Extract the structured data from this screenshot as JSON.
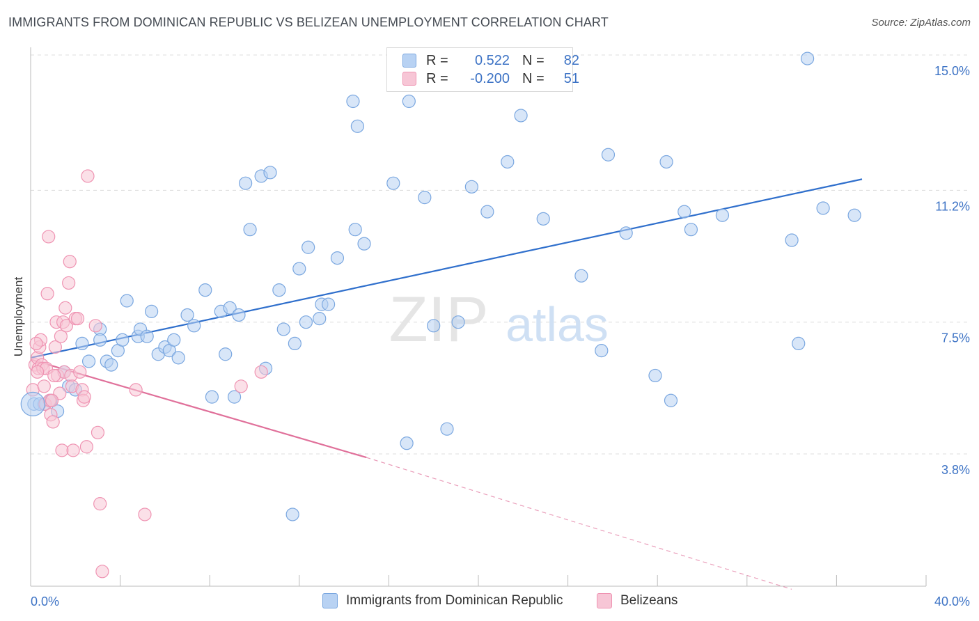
{
  "header": {
    "title": "IMMIGRANTS FROM DOMINICAN REPUBLIC VS BELIZEAN UNEMPLOYMENT CORRELATION CHART",
    "source": "Source: ZipAtlas.com"
  },
  "watermark": {
    "zip": "ZIP",
    "atlas": "atlas"
  },
  "legend": {
    "rows": [
      {
        "r_label": "R =",
        "r_value": "0.522",
        "n_label": "N =",
        "n_value": "82"
      },
      {
        "r_label": "R =",
        "r_value": "-0.200",
        "n_label": "N =",
        "n_value": "51"
      }
    ]
  },
  "colors": {
    "blue_fill": "#b8d2f3",
    "blue_stroke": "#7aa7e0",
    "blue_line": "#2f6fcc",
    "pink_fill": "#f7c6d6",
    "pink_stroke": "#ef93b2",
    "pink_line": "#e0709a",
    "axis_text": "#3d73c5",
    "grid": "#dcdcdc"
  },
  "chart_data": {
    "type": "scatter",
    "title": "IMMIGRANTS FROM DOMINICAN REPUBLIC VS BELIZEAN UNEMPLOYMENT CORRELATION CHART",
    "xlabel": "",
    "ylabel": "Unemployment",
    "xlim": [
      0,
      40
    ],
    "ylim": [
      0,
      15.7
    ],
    "x_tick_labels": [
      "0.0%",
      "40.0%"
    ],
    "y_ticks": [
      3.8,
      7.5,
      11.2,
      15.0
    ],
    "y_tick_labels": [
      "3.8%",
      "7.5%",
      "11.2%",
      "15.0%"
    ],
    "grid": "horizontal dashed",
    "legend_placement": "top-center",
    "series": [
      {
        "name": "Immigrants from Dominican Republic",
        "color": "#b8d2f3",
        "trend": {
          "x": [
            0,
            40
          ],
          "y": [
            6.5,
            11.9
          ]
        },
        "points": [
          [
            0.15,
            5.2
          ],
          [
            0.6,
            5.2
          ],
          [
            0.9,
            5.3
          ],
          [
            1.2,
            5.0
          ],
          [
            1.5,
            6.1
          ],
          [
            1.7,
            5.7
          ],
          [
            2.0,
            5.6
          ],
          [
            2.3,
            6.9
          ],
          [
            2.6,
            6.4
          ],
          [
            3.1,
            7.3
          ],
          [
            3.1,
            7.0
          ],
          [
            3.4,
            6.4
          ],
          [
            3.6,
            6.3
          ],
          [
            3.9,
            6.7
          ],
          [
            4.1,
            7.0
          ],
          [
            4.3,
            8.1
          ],
          [
            4.8,
            7.1
          ],
          [
            4.9,
            7.3
          ],
          [
            5.2,
            7.1
          ],
          [
            5.4,
            7.8
          ],
          [
            5.7,
            6.6
          ],
          [
            6.0,
            6.8
          ],
          [
            6.2,
            6.7
          ],
          [
            6.4,
            7.0
          ],
          [
            6.6,
            6.5
          ],
          [
            7.0,
            7.7
          ],
          [
            7.3,
            7.4
          ],
          [
            7.8,
            8.4
          ],
          [
            8.1,
            5.4
          ],
          [
            8.5,
            7.8
          ],
          [
            8.7,
            6.6
          ],
          [
            8.9,
            7.9
          ],
          [
            9.1,
            5.4
          ],
          [
            9.3,
            7.7
          ],
          [
            9.6,
            11.4
          ],
          [
            9.8,
            10.1
          ],
          [
            10.3,
            11.6
          ],
          [
            10.5,
            6.2
          ],
          [
            10.7,
            11.7
          ],
          [
            11.1,
            8.4
          ],
          [
            11.3,
            7.3
          ],
          [
            11.7,
            2.1
          ],
          [
            11.8,
            6.9
          ],
          [
            12.0,
            9.0
          ],
          [
            12.3,
            7.5
          ],
          [
            12.4,
            9.6
          ],
          [
            12.9,
            7.6
          ],
          [
            13.0,
            8.0
          ],
          [
            13.3,
            8.0
          ],
          [
            13.7,
            9.3
          ],
          [
            14.4,
            13.7
          ],
          [
            14.5,
            10.1
          ],
          [
            14.6,
            13.0
          ],
          [
            14.9,
            9.7
          ],
          [
            16.2,
            11.4
          ],
          [
            16.8,
            4.1
          ],
          [
            16.9,
            13.7
          ],
          [
            17.6,
            11.0
          ],
          [
            18.0,
            7.4
          ],
          [
            18.6,
            4.5
          ],
          [
            19.1,
            7.5
          ],
          [
            19.7,
            11.3
          ],
          [
            20.4,
            10.6
          ],
          [
            21.3,
            12.0
          ],
          [
            21.9,
            13.3
          ],
          [
            22.9,
            10.4
          ],
          [
            24.6,
            8.8
          ],
          [
            25.5,
            6.7
          ],
          [
            25.8,
            12.2
          ],
          [
            26.6,
            10.0
          ],
          [
            27.9,
            6.0
          ],
          [
            28.4,
            12.0
          ],
          [
            28.6,
            5.3
          ],
          [
            29.2,
            10.6
          ],
          [
            29.5,
            10.1
          ],
          [
            30.9,
            10.5
          ],
          [
            34.0,
            9.8
          ],
          [
            34.3,
            6.9
          ],
          [
            34.7,
            14.9
          ],
          [
            35.4,
            10.7
          ],
          [
            36.8,
            10.5
          ],
          [
            0.4,
            5.2
          ]
        ]
      },
      {
        "name": "Belizeans",
        "color": "#f7c6d6",
        "trend": {
          "x": [
            0,
            15
          ],
          "y": [
            6.45,
            3.7
          ]
        },
        "trend_dashed": {
          "x": [
            15,
            34
          ],
          "y": [
            3.7,
            0.0
          ]
        },
        "points": [
          [
            0.1,
            5.6
          ],
          [
            0.2,
            6.3
          ],
          [
            0.3,
            6.5
          ],
          [
            0.35,
            6.2
          ],
          [
            0.4,
            6.8
          ],
          [
            0.45,
            7.0
          ],
          [
            0.5,
            6.3
          ],
          [
            0.55,
            6.2
          ],
          [
            0.6,
            5.7
          ],
          [
            0.65,
            5.2
          ],
          [
            0.7,
            6.2
          ],
          [
            0.75,
            8.3
          ],
          [
            0.8,
            9.9
          ],
          [
            0.85,
            5.3
          ],
          [
            0.9,
            4.9
          ],
          [
            1.0,
            4.7
          ],
          [
            1.1,
            6.8
          ],
          [
            1.15,
            7.5
          ],
          [
            1.2,
            6.0
          ],
          [
            1.3,
            5.5
          ],
          [
            1.35,
            7.1
          ],
          [
            1.4,
            3.9
          ],
          [
            1.45,
            7.5
          ],
          [
            1.5,
            6.1
          ],
          [
            1.55,
            7.9
          ],
          [
            1.6,
            7.4
          ],
          [
            1.7,
            8.6
          ],
          [
            1.75,
            9.2
          ],
          [
            1.8,
            6.0
          ],
          [
            1.85,
            5.7
          ],
          [
            1.9,
            3.9
          ],
          [
            2.0,
            7.6
          ],
          [
            2.1,
            7.6
          ],
          [
            2.2,
            6.1
          ],
          [
            2.3,
            5.6
          ],
          [
            2.35,
            5.3
          ],
          [
            2.5,
            4.0
          ],
          [
            2.55,
            11.6
          ],
          [
            2.9,
            7.4
          ],
          [
            3.0,
            4.4
          ],
          [
            3.1,
            2.4
          ],
          [
            3.2,
            0.5
          ],
          [
            4.7,
            5.6
          ],
          [
            5.1,
            2.1
          ],
          [
            9.4,
            5.7
          ],
          [
            10.3,
            6.1
          ],
          [
            0.25,
            6.9
          ],
          [
            0.3,
            6.1
          ],
          [
            0.95,
            5.3
          ],
          [
            1.05,
            6.0
          ],
          [
            2.4,
            5.4
          ]
        ]
      }
    ]
  },
  "bottom_legend": {
    "items": [
      "Immigrants from Dominican Republic",
      "Belizeans"
    ]
  }
}
